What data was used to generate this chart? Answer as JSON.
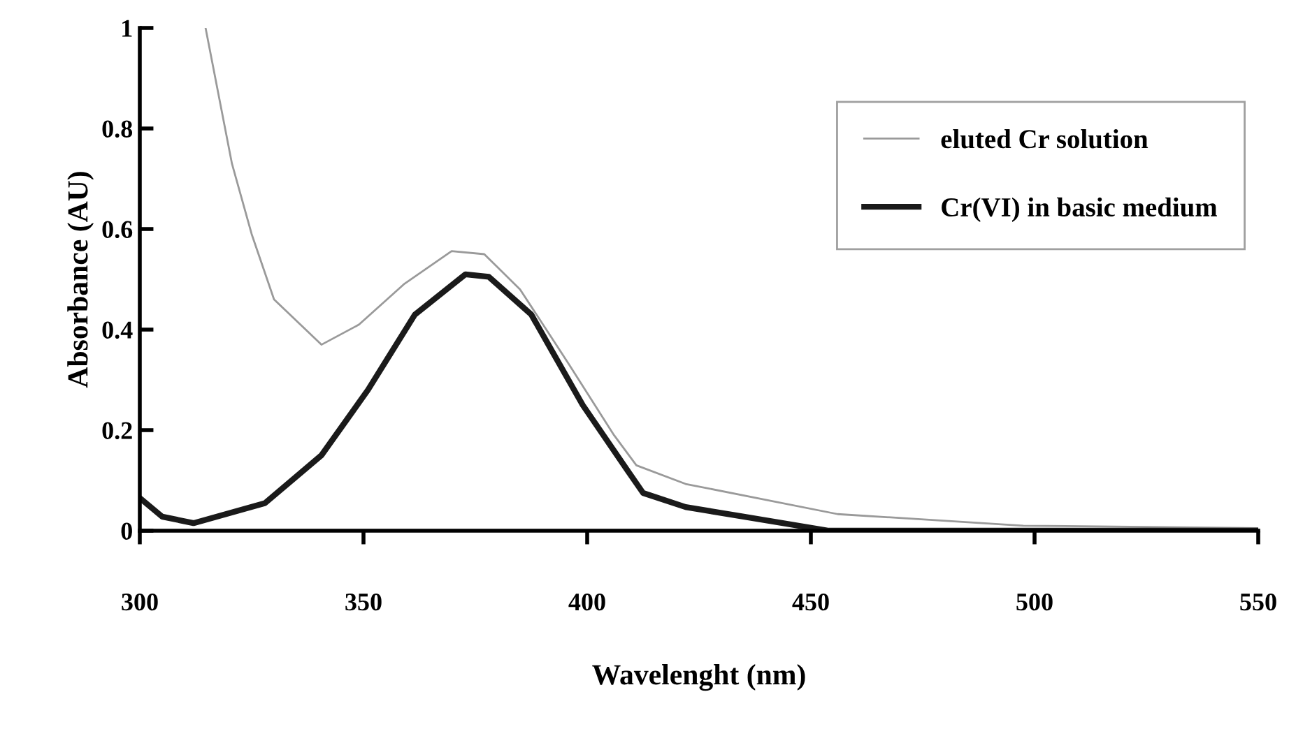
{
  "chart_data": {
    "type": "line",
    "xlabel": "Wavelenght (nm)",
    "ylabel": "Absorbance (AU)",
    "xlim": [
      300,
      550
    ],
    "ylim": [
      0,
      1
    ],
    "xticks": [
      300,
      350,
      400,
      450,
      500,
      550
    ],
    "yticks": [
      0,
      0.2,
      0.4,
      0.6,
      0.8,
      1
    ],
    "grid": false,
    "legend": "top right",
    "marker": "none",
    "line_style": "solid",
    "series": [
      {
        "name": "eluted Cr solution",
        "color": "#9a9a9a",
        "x": [
          314.7,
          320.6,
          325,
          330,
          340.6,
          349,
          359,
          369.7,
          377,
          385,
          396,
          406,
          411,
          422,
          456,
          497.5,
          550
        ],
        "values": [
          1.0,
          0.73,
          0.59,
          0.46,
          0.37,
          0.41,
          0.49,
          0.556,
          0.55,
          0.48,
          0.33,
          0.19,
          0.13,
          0.093,
          0.033,
          0.01,
          0.005
        ]
      },
      {
        "name": "Cr(VI) in basic medium",
        "color": "#1a1a1a",
        "x": [
          300,
          305,
          312,
          328,
          340.6,
          351,
          361.5,
          372.8,
          378,
          387.5,
          399,
          409,
          412.5,
          422,
          435,
          454,
          500,
          550
        ],
        "values": [
          0.065,
          0.028,
          0.015,
          0.055,
          0.15,
          0.28,
          0.43,
          0.51,
          0.505,
          0.43,
          0.25,
          0.12,
          0.075,
          0.047,
          0.028,
          0,
          0,
          0
        ]
      }
    ]
  }
}
